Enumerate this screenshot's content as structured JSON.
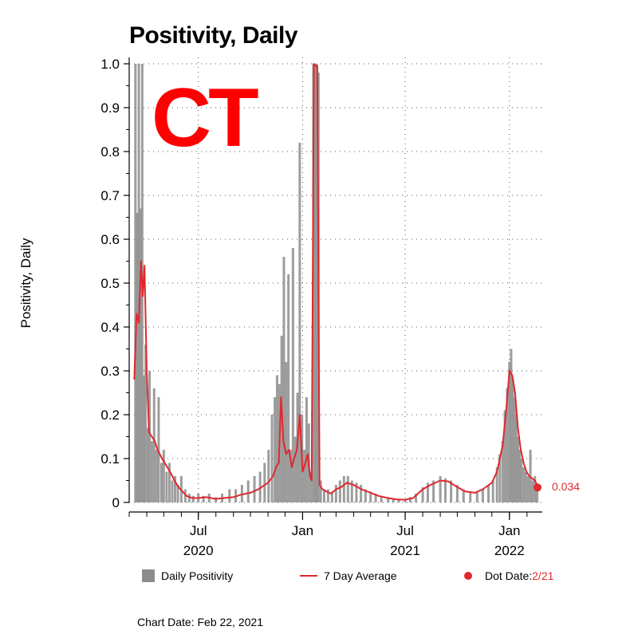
{
  "state_label": "CT",
  "chart_date": "Chart Date: Feb 22, 2021",
  "legend": {
    "bars": "Daily Positivity",
    "line": "7 Day Average",
    "dot_prefix": "Dot Date: ",
    "dot_date": "2/21"
  },
  "colors": {
    "bars": "#8c8c8c",
    "line": "#e0282d",
    "state": "#ff0000"
  },
  "chart_data": {
    "type": "bar",
    "title": "Positivity, Daily",
    "ylabel": "Positivity, Daily",
    "ylim": [
      0,
      1.0
    ],
    "yticks": [
      "0",
      "0.1",
      "0.2",
      "0.3",
      "0.4",
      "0.5",
      "0.6",
      "0.7",
      "0.8",
      "0.9",
      "1.0"
    ],
    "xlim": [
      "2020-03-01",
      "2022-02-28"
    ],
    "xticks": [
      {
        "date": "2020-07-01",
        "label": "Jul",
        "year": "2020"
      },
      {
        "date": "2021-01-01",
        "label": "Jan",
        "year": ""
      },
      {
        "date": "2021-07-01",
        "label": "Jul",
        "year": "2021"
      },
      {
        "date": "2022-01-01",
        "label": "Jan",
        "year": "2022"
      }
    ],
    "grid": true,
    "legend_position": "bottom",
    "last_value": {
      "date": "2022-02-21",
      "value": 0.034,
      "label": "0.034"
    },
    "series": [
      {
        "name": "7 Day Average",
        "kind": "line",
        "points": [
          [
            "2020-03-10",
            0.28
          ],
          [
            "2020-03-14",
            0.43
          ],
          [
            "2020-03-18",
            0.41
          ],
          [
            "2020-03-22",
            0.55
          ],
          [
            "2020-03-25",
            0.47
          ],
          [
            "2020-03-28",
            0.54
          ],
          [
            "2020-04-01",
            0.3
          ],
          [
            "2020-04-05",
            0.16
          ],
          [
            "2020-04-10",
            0.15
          ],
          [
            "2020-04-15",
            0.14
          ],
          [
            "2020-04-20",
            0.12
          ],
          [
            "2020-04-28",
            0.1
          ],
          [
            "2020-05-05",
            0.085
          ],
          [
            "2020-05-12",
            0.07
          ],
          [
            "2020-05-20",
            0.05
          ],
          [
            "2020-05-27",
            0.035
          ],
          [
            "2020-06-03",
            0.025
          ],
          [
            "2020-06-10",
            0.015
          ],
          [
            "2020-06-20",
            0.01
          ],
          [
            "2020-07-01",
            0.01
          ],
          [
            "2020-07-15",
            0.012
          ],
          [
            "2020-08-01",
            0.008
          ],
          [
            "2020-08-15",
            0.01
          ],
          [
            "2020-09-01",
            0.012
          ],
          [
            "2020-09-15",
            0.018
          ],
          [
            "2020-10-01",
            0.022
          ],
          [
            "2020-10-15",
            0.03
          ],
          [
            "2020-11-01",
            0.045
          ],
          [
            "2020-11-10",
            0.06
          ],
          [
            "2020-11-15",
            0.08
          ],
          [
            "2020-11-20",
            0.09
          ],
          [
            "2020-11-24",
            0.24
          ],
          [
            "2020-11-28",
            0.14
          ],
          [
            "2020-12-03",
            0.11
          ],
          [
            "2020-12-08",
            0.12
          ],
          [
            "2020-12-13",
            0.08
          ],
          [
            "2020-12-17",
            0.1
          ],
          [
            "2020-12-22",
            0.12
          ],
          [
            "2020-12-27",
            0.2
          ],
          [
            "2021-01-01",
            0.07
          ],
          [
            "2021-01-06",
            0.09
          ],
          [
            "2021-01-10",
            0.11
          ],
          [
            "2021-01-14",
            0.06
          ],
          [
            "2021-01-17",
            0.05
          ],
          [
            "2021-01-21",
            1.0
          ],
          [
            "2021-01-24",
            0.995
          ],
          [
            "2021-01-27",
            0.995
          ],
          [
            "2021-01-31",
            0.04
          ],
          [
            "2021-02-05",
            0.03
          ],
          [
            "2021-02-12",
            0.025
          ],
          [
            "2021-02-20",
            0.02
          ],
          [
            "2021-03-01",
            0.03
          ],
          [
            "2021-03-10",
            0.035
          ],
          [
            "2021-03-20",
            0.045
          ],
          [
            "2021-04-01",
            0.04
          ],
          [
            "2021-04-15",
            0.03
          ],
          [
            "2021-05-01",
            0.022
          ],
          [
            "2021-05-15",
            0.015
          ],
          [
            "2021-06-01",
            0.01
          ],
          [
            "2021-06-15",
            0.007
          ],
          [
            "2021-07-01",
            0.006
          ],
          [
            "2021-07-15",
            0.01
          ],
          [
            "2021-08-01",
            0.03
          ],
          [
            "2021-08-15",
            0.04
          ],
          [
            "2021-09-01",
            0.05
          ],
          [
            "2021-09-15",
            0.048
          ],
          [
            "2021-10-01",
            0.035
          ],
          [
            "2021-10-15",
            0.025
          ],
          [
            "2021-11-01",
            0.022
          ],
          [
            "2021-11-15",
            0.03
          ],
          [
            "2021-12-01",
            0.045
          ],
          [
            "2021-12-10",
            0.07
          ],
          [
            "2021-12-20",
            0.13
          ],
          [
            "2021-12-27",
            0.22
          ],
          [
            "2022-01-01",
            0.3
          ],
          [
            "2022-01-06",
            0.29
          ],
          [
            "2022-01-11",
            0.25
          ],
          [
            "2022-01-16",
            0.17
          ],
          [
            "2022-01-21",
            0.12
          ],
          [
            "2022-01-26",
            0.09
          ],
          [
            "2022-01-31",
            0.07
          ],
          [
            "2022-02-05",
            0.06
          ],
          [
            "2022-02-10",
            0.055
          ],
          [
            "2022-02-15",
            0.05
          ],
          [
            "2022-02-21",
            0.034
          ]
        ]
      },
      {
        "name": "Daily Positivity",
        "kind": "bar",
        "points": [
          [
            "2020-03-12",
            1.0
          ],
          [
            "2020-03-15",
            0.66
          ],
          [
            "2020-03-18",
            1.0
          ],
          [
            "2020-03-21",
            0.67
          ],
          [
            "2020-03-24",
            1.0
          ],
          [
            "2020-03-27",
            0.29
          ],
          [
            "2020-03-30",
            0.36
          ],
          [
            "2020-04-03",
            0.17
          ],
          [
            "2020-04-06",
            0.3
          ],
          [
            "2020-04-10",
            0.14
          ],
          [
            "2020-04-14",
            0.26
          ],
          [
            "2020-04-18",
            0.12
          ],
          [
            "2020-04-22",
            0.24
          ],
          [
            "2020-04-27",
            0.09
          ],
          [
            "2020-05-01",
            0.12
          ],
          [
            "2020-05-06",
            0.07
          ],
          [
            "2020-05-11",
            0.09
          ],
          [
            "2020-05-16",
            0.05
          ],
          [
            "2020-05-21",
            0.06
          ],
          [
            "2020-05-26",
            0.04
          ],
          [
            "2020-06-01",
            0.06
          ],
          [
            "2020-06-08",
            0.03
          ],
          [
            "2020-06-15",
            0.02
          ],
          [
            "2020-06-22",
            0.015
          ],
          [
            "2020-07-01",
            0.02
          ],
          [
            "2020-07-10",
            0.015
          ],
          [
            "2020-07-20",
            0.02
          ],
          [
            "2020-08-01",
            0.012
          ],
          [
            "2020-08-12",
            0.02
          ],
          [
            "2020-08-25",
            0.03
          ],
          [
            "2020-09-05",
            0.03
          ],
          [
            "2020-09-16",
            0.04
          ],
          [
            "2020-09-27",
            0.05
          ],
          [
            "2020-10-08",
            0.06
          ],
          [
            "2020-10-18",
            0.07
          ],
          [
            "2020-10-26",
            0.09
          ],
          [
            "2020-11-02",
            0.12
          ],
          [
            "2020-11-08",
            0.2
          ],
          [
            "2020-11-13",
            0.24
          ],
          [
            "2020-11-17",
            0.29
          ],
          [
            "2020-11-21",
            0.27
          ],
          [
            "2020-11-25",
            0.38
          ],
          [
            "2020-11-29",
            0.56
          ],
          [
            "2020-12-03",
            0.32
          ],
          [
            "2020-12-07",
            0.52
          ],
          [
            "2020-12-11",
            0.12
          ],
          [
            "2020-12-15",
            0.58
          ],
          [
            "2020-12-19",
            0.15
          ],
          [
            "2020-12-23",
            0.25
          ],
          [
            "2020-12-27",
            0.82
          ],
          [
            "2020-12-31",
            0.2
          ],
          [
            "2021-01-04",
            0.12
          ],
          [
            "2021-01-08",
            0.24
          ],
          [
            "2021-01-12",
            0.18
          ],
          [
            "2021-01-16",
            0.07
          ],
          [
            "2021-01-20",
            1.0
          ],
          [
            "2021-01-23",
            1.0
          ],
          [
            "2021-01-26",
            1.0
          ],
          [
            "2021-01-29",
            0.98
          ],
          [
            "2021-02-02",
            0.05
          ],
          [
            "2021-02-08",
            0.03
          ],
          [
            "2021-02-15",
            0.03
          ],
          [
            "2021-02-22",
            0.025
          ],
          [
            "2021-03-01",
            0.04
          ],
          [
            "2021-03-08",
            0.05
          ],
          [
            "2021-03-15",
            0.06
          ],
          [
            "2021-03-22",
            0.06
          ],
          [
            "2021-03-29",
            0.05
          ],
          [
            "2021-04-06",
            0.045
          ],
          [
            "2021-04-14",
            0.04
          ],
          [
            "2021-04-22",
            0.03
          ],
          [
            "2021-05-01",
            0.025
          ],
          [
            "2021-05-10",
            0.02
          ],
          [
            "2021-05-20",
            0.015
          ],
          [
            "2021-06-01",
            0.012
          ],
          [
            "2021-06-10",
            0.01
          ],
          [
            "2021-06-20",
            0.008
          ],
          [
            "2021-07-01",
            0.008
          ],
          [
            "2021-07-10",
            0.012
          ],
          [
            "2021-07-20",
            0.02
          ],
          [
            "2021-08-01",
            0.035
          ],
          [
            "2021-08-10",
            0.045
          ],
          [
            "2021-08-20",
            0.05
          ],
          [
            "2021-09-01",
            0.06
          ],
          [
            "2021-09-10",
            0.055
          ],
          [
            "2021-09-20",
            0.05
          ],
          [
            "2021-10-01",
            0.04
          ],
          [
            "2021-10-12",
            0.03
          ],
          [
            "2021-10-24",
            0.025
          ],
          [
            "2021-11-05",
            0.025
          ],
          [
            "2021-11-15",
            0.03
          ],
          [
            "2021-11-25",
            0.04
          ],
          [
            "2021-12-03",
            0.05
          ],
          [
            "2021-12-10",
            0.08
          ],
          [
            "2021-12-15",
            0.11
          ],
          [
            "2021-12-20",
            0.14
          ],
          [
            "2021-12-24",
            0.21
          ],
          [
            "2021-12-28",
            0.26
          ],
          [
            "2022-01-01",
            0.32
          ],
          [
            "2022-01-04",
            0.35
          ],
          [
            "2022-01-07",
            0.28
          ],
          [
            "2022-01-10",
            0.24
          ],
          [
            "2022-01-13",
            0.2
          ],
          [
            "2022-01-16",
            0.15
          ],
          [
            "2022-01-19",
            0.12
          ],
          [
            "2022-01-22",
            0.1
          ],
          [
            "2022-01-26",
            0.08
          ],
          [
            "2022-01-30",
            0.07
          ],
          [
            "2022-02-03",
            0.06
          ],
          [
            "2022-02-07",
            0.12
          ],
          [
            "2022-02-11",
            0.05
          ],
          [
            "2022-02-15",
            0.06
          ],
          [
            "2022-02-19",
            0.04
          ]
        ]
      }
    ]
  }
}
